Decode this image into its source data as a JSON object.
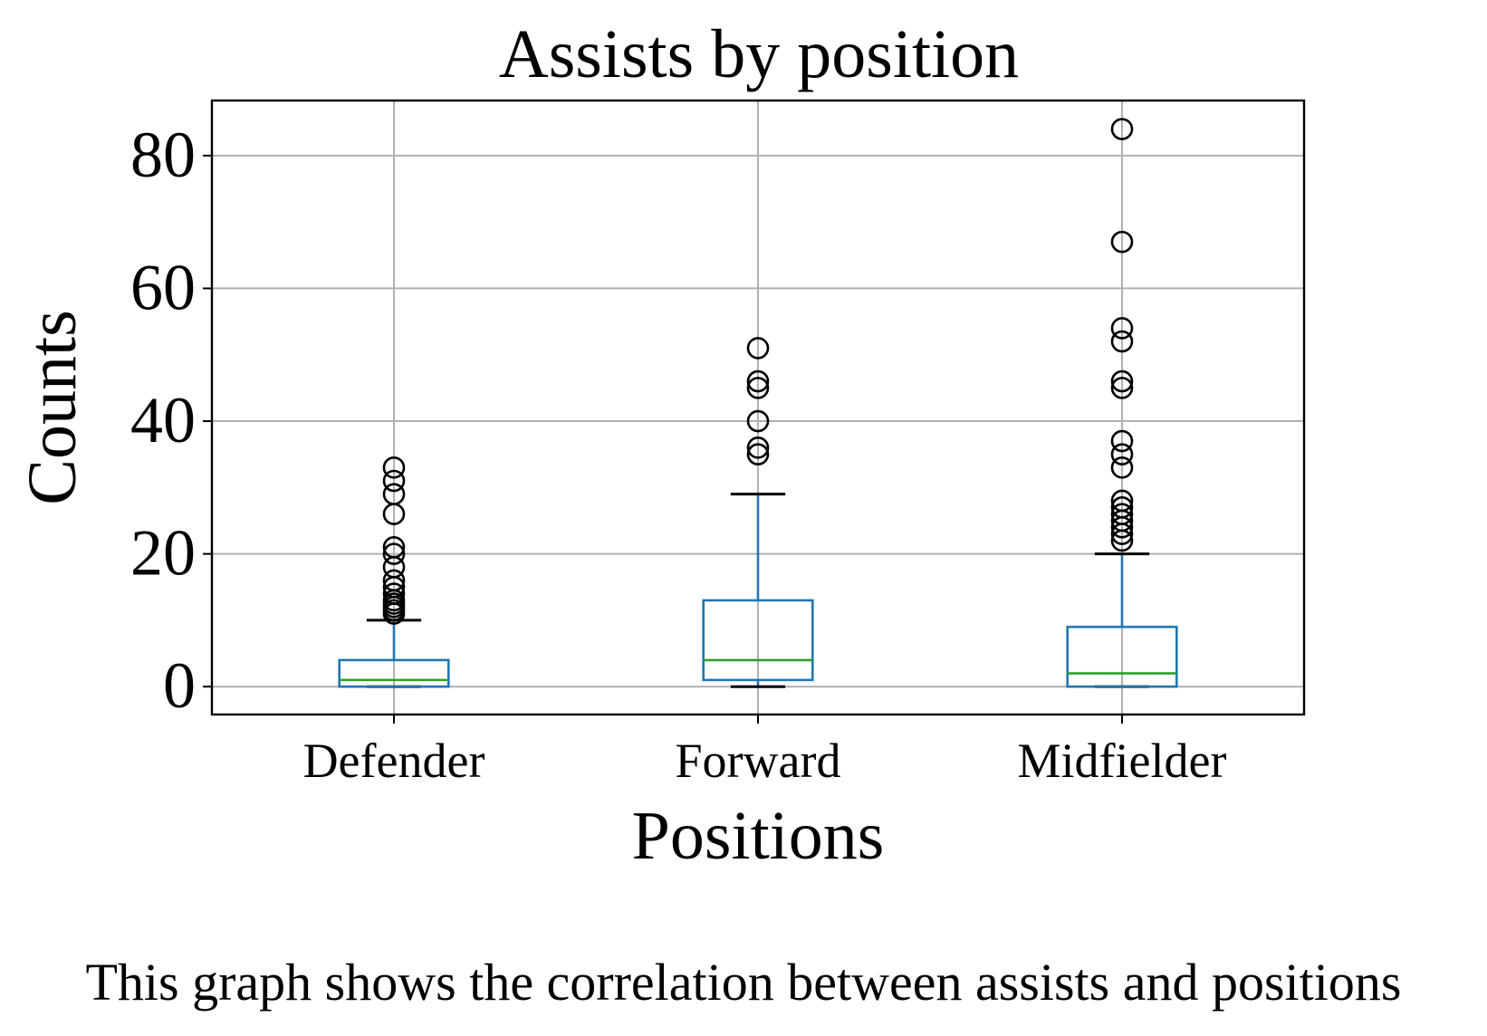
{
  "caption": "This graph shows the correlation between assists and positions",
  "chart_data": {
    "type": "box",
    "title": "Assists by position",
    "xlabel": "Positions",
    "ylabel": "Counts",
    "ylim": [
      -4.2,
      88.3
    ],
    "yticks": [
      0,
      20,
      40,
      60,
      80
    ],
    "grid": true,
    "categories": [
      "Defender",
      "Forward",
      "Midfielder"
    ],
    "colors": {
      "box": "#1f77b4",
      "median": "#2ca02c",
      "grid": "#b0b0b0",
      "axes": "#000000"
    },
    "boxes": [
      {
        "name": "Defender",
        "whisker_low": 0,
        "q1": 0,
        "median": 1,
        "q3": 4,
        "whisker_high": 10,
        "outliers": [
          11,
          11.5,
          12,
          12.5,
          13,
          14,
          15,
          16,
          18,
          20,
          21,
          26,
          29,
          31,
          33
        ]
      },
      {
        "name": "Forward",
        "whisker_low": 0,
        "q1": 1,
        "median": 4,
        "q3": 13,
        "whisker_high": 29,
        "outliers": [
          35,
          36,
          40,
          45,
          46,
          51
        ]
      },
      {
        "name": "Midfielder",
        "whisker_low": 0,
        "q1": 0,
        "median": 2,
        "q3": 9,
        "whisker_high": 20,
        "outliers": [
          22,
          23,
          24,
          25,
          26,
          27,
          28,
          33,
          35,
          37,
          45,
          46,
          52,
          54,
          67,
          84
        ]
      }
    ]
  }
}
